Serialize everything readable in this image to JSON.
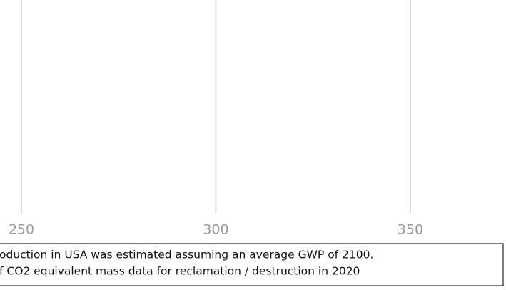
{
  "chart_data": {
    "type": "bar",
    "xlim": [
      244.5,
      374.6
    ],
    "xticks": [
      250,
      300,
      350
    ],
    "grid": true,
    "notes": [
      "oduction in USA was estimated assuming an average GWP of 2100.",
      "f CO2 equivalent mass data for reclamation / destruction in 2020"
    ]
  }
}
